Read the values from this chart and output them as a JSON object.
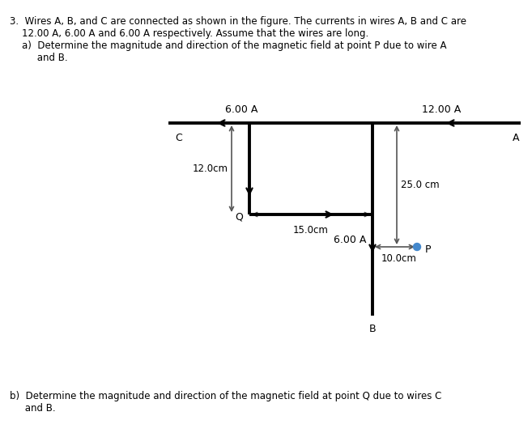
{
  "bg_color": "#ffffff",
  "text_color": "#000000",
  "wire_color": "#000000",
  "meas_color": "#555555",
  "label_6A_top": "6.00 A",
  "label_12A_top": "12.00 A",
  "label_C": "C",
  "label_A": "A",
  "label_B": "B",
  "label_Q": "Q",
  "label_P": "P",
  "label_12cm": "12.0cm",
  "label_15cm": "15.0cm",
  "label_25cm": "25.0 cm",
  "label_10cm": "10.0cm",
  "label_6A_mid": "6.00 A",
  "title_lines": [
    "3.  Wires A, B, and C are connected as shown in the figure. The currents in wires A, B and C are",
    "    12.00 A, 6.00 A and 6.00 A respectively. Assume that the wires are long.",
    "    a)  Determine the magnitude and direction of the magnetic field at point P due to wire A",
    "         and B."
  ],
  "bottom_lines": [
    "b)  Determine the magnitude and direction of the magnetic field at point Q due to wires C",
    "     and B."
  ],
  "point_P_color": "#4488cc",
  "figsize": [
    6.57,
    5.35
  ],
  "dpi": 100
}
